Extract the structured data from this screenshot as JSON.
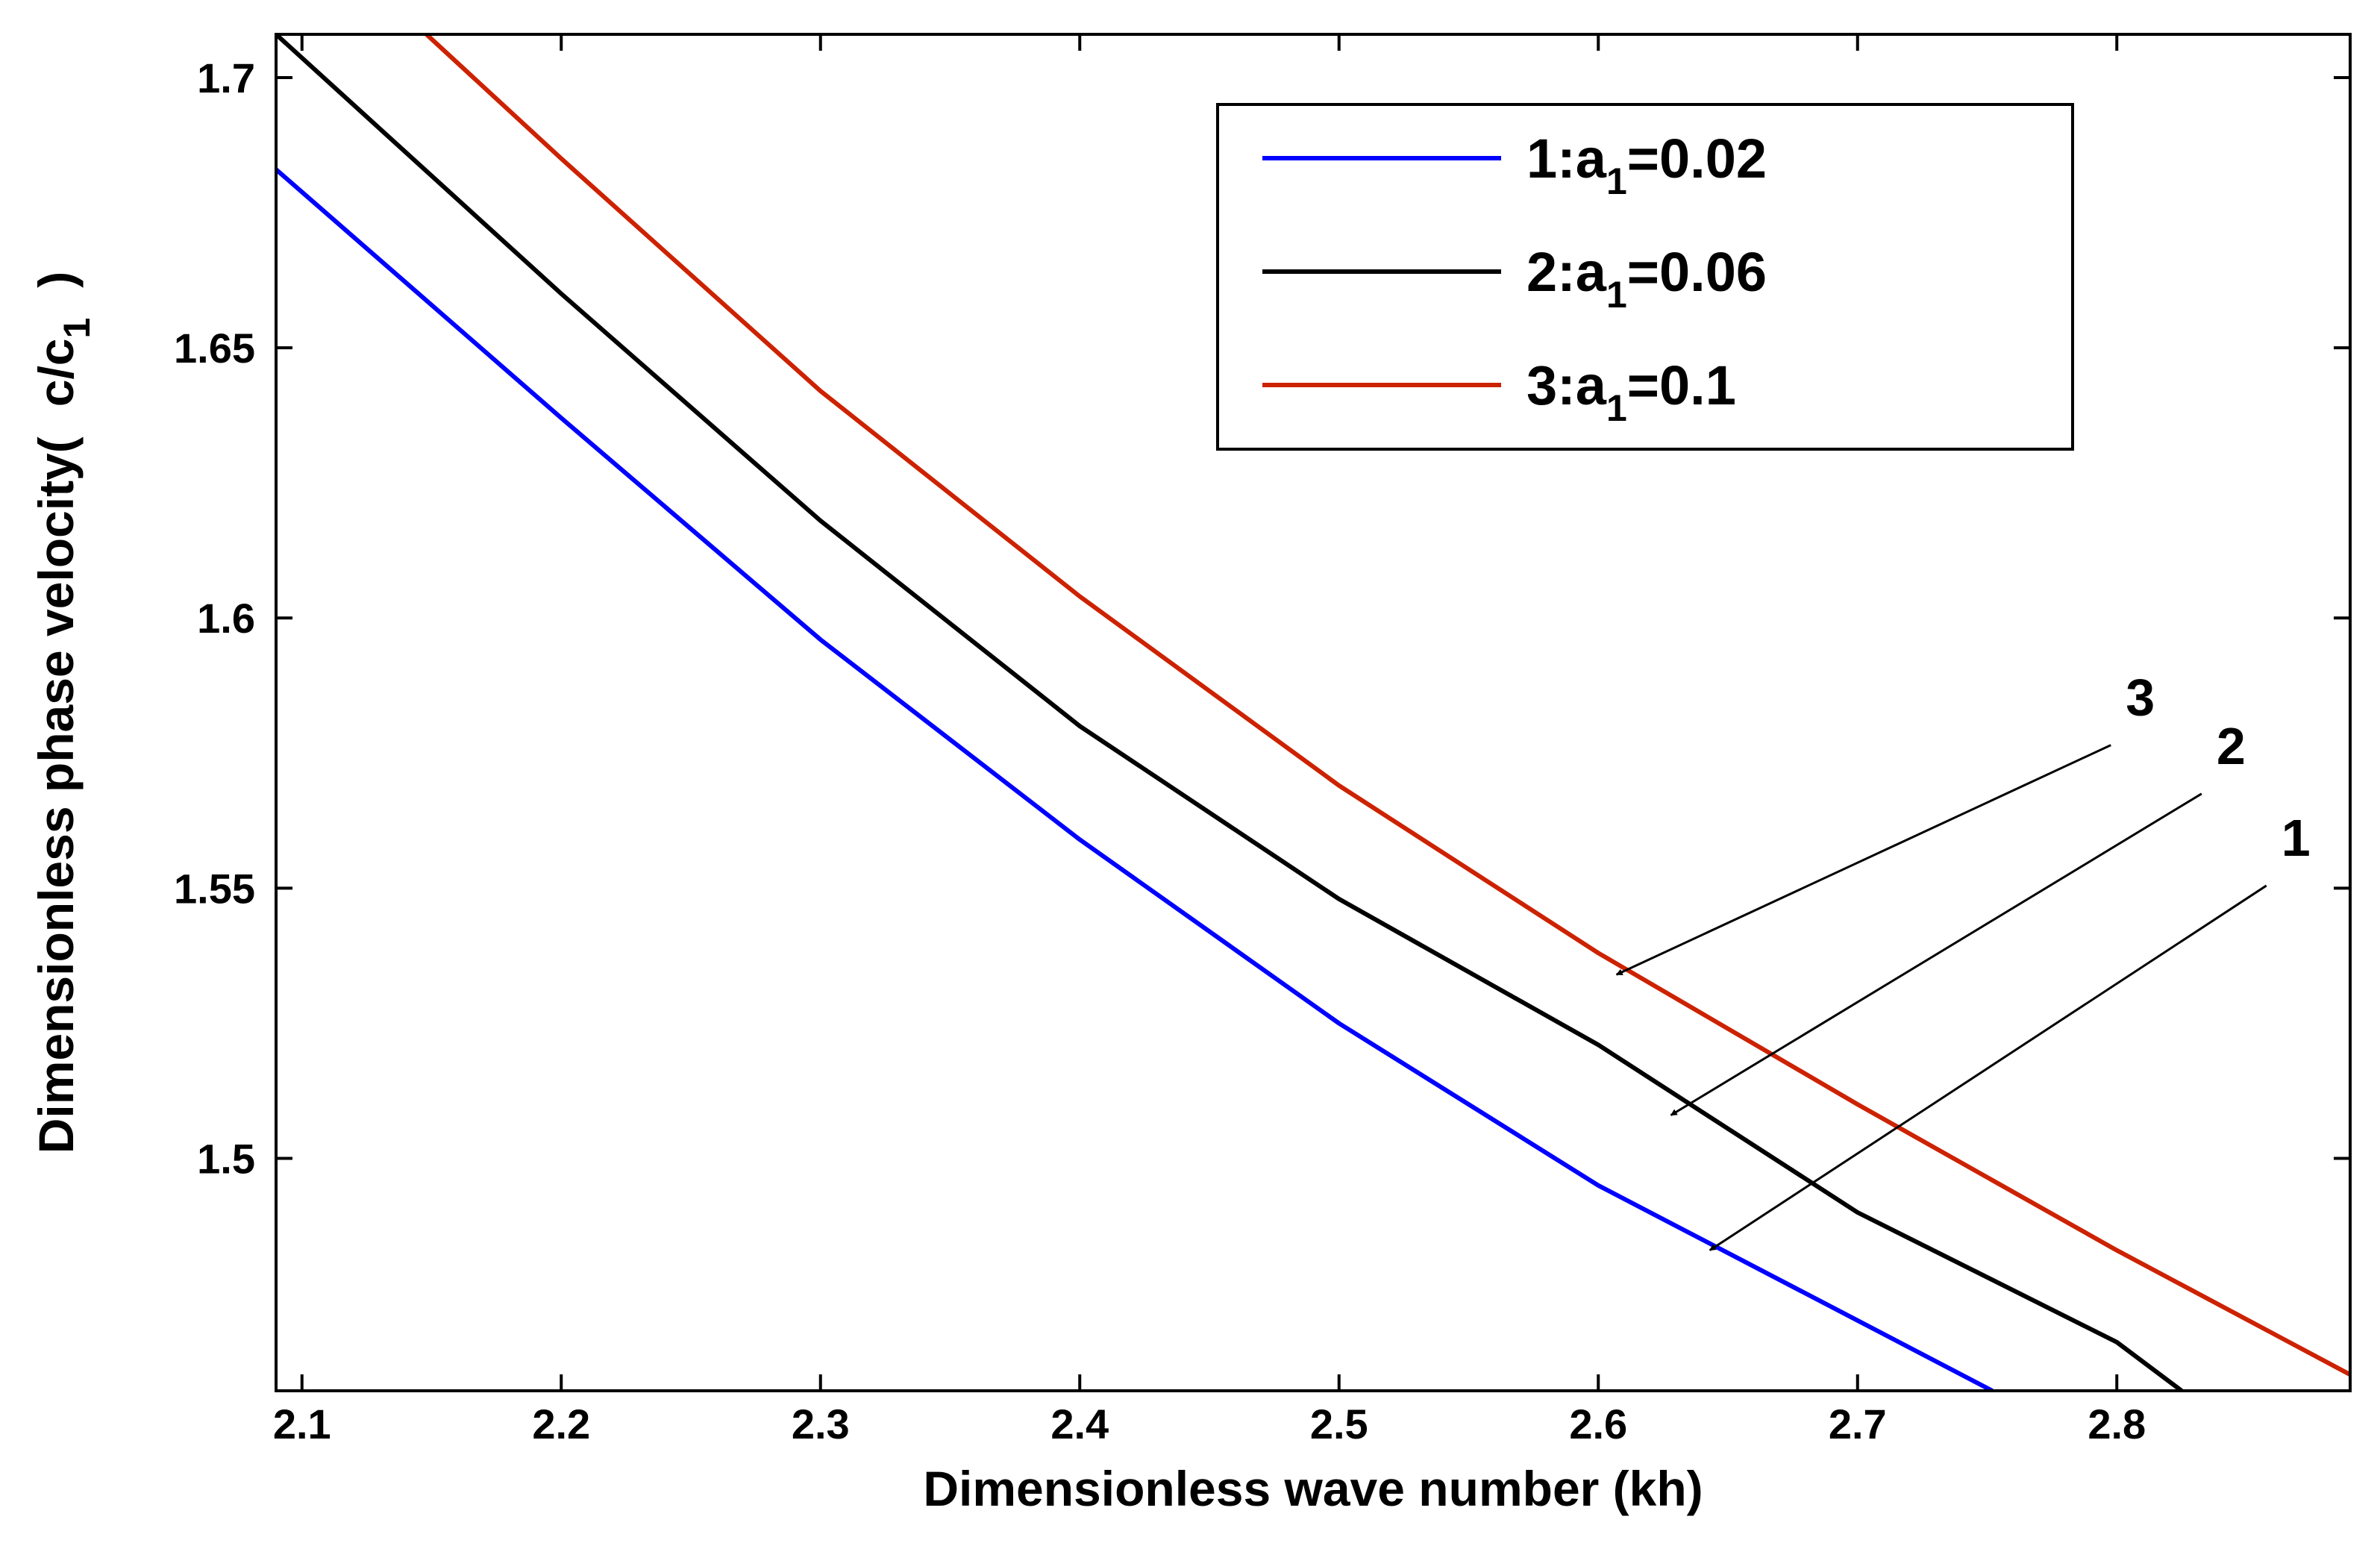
{
  "chart_data": {
    "type": "line",
    "title": "",
    "xlabel": "Dimensionless wave number (kh)",
    "ylabel": {
      "main": "Dimensionless phase velocity(",
      "c": "c/c",
      "sub": "1",
      "close": ")"
    },
    "xlim": [
      2.09,
      2.89
    ],
    "ylim": [
      1.457,
      1.708
    ],
    "xticks": [
      2.1,
      2.2,
      2.3,
      2.4,
      2.5,
      2.6,
      2.7,
      2.8
    ],
    "xtick_labels": [
      "2.1",
      "2.2",
      "2.3",
      "2.4",
      "2.5",
      "2.6",
      "2.7",
      "2.8"
    ],
    "yticks": [
      1.5,
      1.55,
      1.6,
      1.65,
      1.7
    ],
    "ytick_labels": [
      "1.5",
      "1.55",
      "1.6",
      "1.65",
      "1.7"
    ],
    "grid": false,
    "legend_position": "top-right",
    "series": [
      {
        "name": "1:a1=0.02",
        "label_prefix": "1:a",
        "label_sub": "1",
        "label_suffix": "=0.02",
        "color": "#0000ff",
        "x": [
          2.09,
          2.2,
          2.3,
          2.4,
          2.5,
          2.6,
          2.7,
          2.752
        ],
        "y": [
          1.683,
          1.637,
          1.596,
          1.559,
          1.525,
          1.495,
          1.47,
          1.457
        ]
      },
      {
        "name": "2:a1=0.06",
        "label_prefix": "2:a",
        "label_sub": "1",
        "label_suffix": "=0.06",
        "color": "#000000",
        "x": [
          2.09,
          2.2,
          2.3,
          2.4,
          2.5,
          2.6,
          2.7,
          2.8,
          2.825
        ],
        "y": [
          1.708,
          1.66,
          1.618,
          1.58,
          1.548,
          1.521,
          1.49,
          1.466,
          1.457
        ]
      },
      {
        "name": "3:a1=0.1",
        "label_prefix": "3:a",
        "label_sub": "1",
        "label_suffix": "=0.1",
        "color": "#cc2200",
        "x": [
          2.148,
          2.2,
          2.3,
          2.4,
          2.5,
          2.6,
          2.7,
          2.8,
          2.89
        ],
        "y": [
          1.708,
          1.685,
          1.642,
          1.604,
          1.569,
          1.538,
          1.51,
          1.483,
          1.46
        ]
      }
    ],
    "annotations": [
      {
        "text": "3",
        "target": [
          2.607,
          1.534
        ],
        "label_at": [
          2.8,
          1.582
        ]
      },
      {
        "text": "2",
        "target": [
          2.628,
          1.508
        ],
        "label_at": [
          2.835,
          1.573
        ]
      },
      {
        "text": "1",
        "target": [
          2.643,
          1.483
        ],
        "label_at": [
          2.86,
          1.556
        ]
      }
    ]
  }
}
